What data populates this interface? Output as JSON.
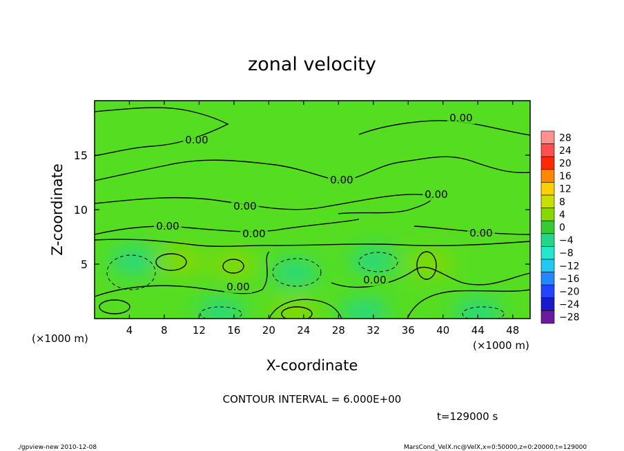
{
  "chart_data": {
    "type": "heatmap",
    "title": "zonal velocity",
    "xlabel": "X-coordinate",
    "ylabel": "Z-coordinate",
    "x_unit": "(×1000 m)",
    "y_unit": "(×1000 m)",
    "xlim": [
      0,
      50
    ],
    "ylim": [
      0,
      20
    ],
    "x_ticks": [
      4,
      8,
      12,
      16,
      20,
      24,
      28,
      32,
      36,
      40,
      44,
      48
    ],
    "y_ticks": [
      5,
      10,
      15
    ],
    "contour_interval_text": "CONTOUR INTERVAL = 6.000E+00",
    "time_text": "t=129000 s",
    "contour_label": "0.00",
    "colorbar": {
      "levels": [
        28,
        24,
        20,
        16,
        12,
        8,
        4,
        0,
        -4,
        -8,
        -12,
        -16,
        -20,
        -24,
        -28
      ],
      "colors": [
        "#ff9090",
        "#ff5050",
        "#ff2a00",
        "#ff8800",
        "#ffd000",
        "#c8e000",
        "#88d800",
        "#33cc33",
        "#22d888",
        "#22e8d0",
        "#22c8f0",
        "#2288ff",
        "#2244ff",
        "#1a1acc",
        "#6a1a9a"
      ]
    },
    "features": [
      {
        "x": 10,
        "z": 5.3,
        "value": 5
      },
      {
        "x": 16,
        "z": 5,
        "value": 5
      },
      {
        "x": 23,
        "z": 0.6,
        "value": 7
      },
      {
        "x": 38.5,
        "z": 5,
        "value": 5
      },
      {
        "x": 4.5,
        "z": 5.3,
        "value": -4
      },
      {
        "x": 23,
        "z": 4.2,
        "value": -4
      },
      {
        "x": 32,
        "z": 5.3,
        "value": -4
      },
      {
        "x": 14.5,
        "z": 0.6,
        "value": -3
      },
      {
        "x": 31,
        "z": 0.6,
        "value": -3
      },
      {
        "x": 44,
        "z": 0.6,
        "value": -3
      }
    ]
  },
  "footer": {
    "left": "./gpview-new   2010-12-08",
    "right": "MarsCond_VelX.nc@VelX,x=0:50000,z=0:20000,t=129000"
  }
}
